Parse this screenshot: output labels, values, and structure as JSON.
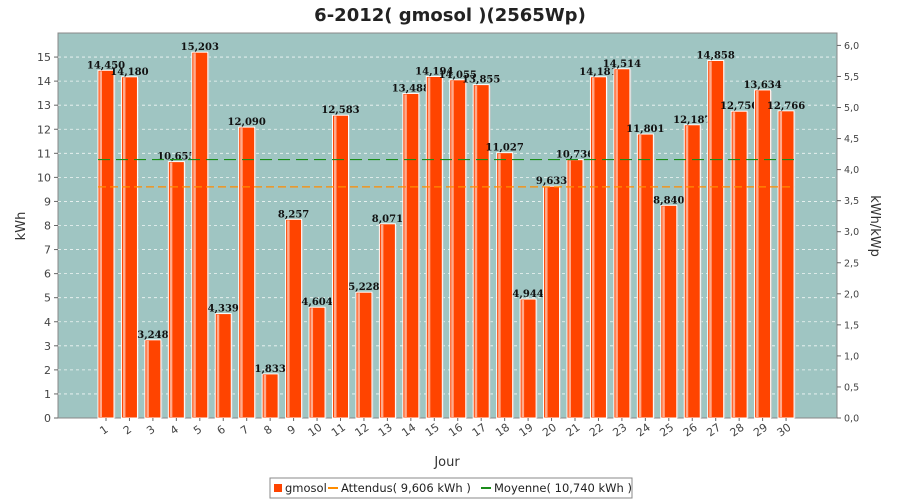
{
  "chart_data": {
    "type": "bar",
    "title": "6-2012( gmosol )(2565Wp)",
    "xlabel": "Jour",
    "ylabel": "kWh",
    "y2label": "kWh/kWp",
    "ylim": [
      0,
      16
    ],
    "y2lim": [
      0,
      6.2
    ],
    "yticks": [
      "0",
      "1",
      "2",
      "3",
      "4",
      "5",
      "6",
      "7",
      "8",
      "9",
      "10",
      "11",
      "12",
      "13",
      "14",
      "15"
    ],
    "y2ticks": [
      "0,0",
      "0,5",
      "1,0",
      "1,5",
      "2,0",
      "2,5",
      "3,0",
      "3,5",
      "4,0",
      "4,5",
      "5,0",
      "5,5",
      "6,0"
    ],
    "categories": [
      "1",
      "2",
      "3",
      "4",
      "5",
      "6",
      "7",
      "8",
      "9",
      "10",
      "11",
      "12",
      "13",
      "14",
      "15",
      "16",
      "17",
      "18",
      "19",
      "20",
      "21",
      "22",
      "23",
      "24",
      "25",
      "26",
      "27",
      "28",
      "29",
      "30"
    ],
    "values": [
      14.45,
      14.18,
      3.248,
      10.655,
      15.203,
      4.339,
      12.09,
      1.833,
      8.257,
      4.604,
      12.583,
      5.228,
      8.071,
      13.488,
      14.194,
      14.055,
      13.855,
      11.027,
      4.944,
      9.633,
      10.736,
      14.181,
      14.514,
      11.801,
      8.84,
      12.187,
      14.858,
      12.75,
      13.634,
      12.766
    ],
    "labels": [
      "14,450",
      "14,180",
      "3,248",
      "10,655",
      "15,203",
      "4,339",
      "12,090",
      "1,833",
      "8,257",
      "4,604",
      "12,583",
      "5,228",
      "8,071",
      "13,488",
      "14,194",
      "14,055",
      "13,855",
      "11,027",
      "4,944",
      "9,633",
      "10,736",
      "14,181",
      "14,514",
      "11,801",
      "8,840",
      "12,187",
      "14,858",
      "12,750",
      "13,634",
      "12,766"
    ],
    "lines": [
      {
        "name": "Attendus( 9,606 kWh )",
        "value": 9.606,
        "color": "#ff8c00"
      },
      {
        "name": "Moyenne( 10,740 kWh )",
        "value": 10.74,
        "color": "#1a8c1a"
      }
    ],
    "series_name": "gmosol",
    "bar_color": "#ff4400",
    "background": "#9fc5c2",
    "grid": true,
    "legend_position": "bottom"
  }
}
